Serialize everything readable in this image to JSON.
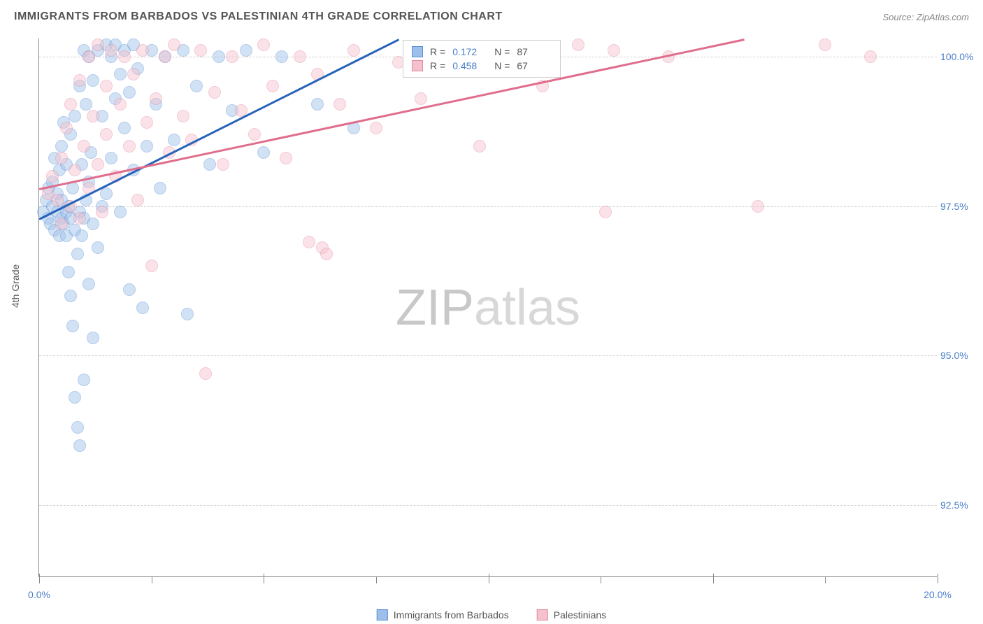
{
  "header": {
    "title": "IMMIGRANTS FROM BARBADOS VS PALESTINIAN 4TH GRADE CORRELATION CHART",
    "source_label": "Source: ",
    "source_value": "ZipAtlas.com"
  },
  "chart": {
    "type": "scatter",
    "watermark": {
      "bold": "ZIP",
      "light": "atlas"
    },
    "ylabel": "4th Grade",
    "xlim": [
      0,
      20
    ],
    "ylim": [
      91.3,
      100.3
    ],
    "yticks": [
      {
        "v": 92.5,
        "label": "92.5%"
      },
      {
        "v": 95.0,
        "label": "95.0%"
      },
      {
        "v": 97.5,
        "label": "97.5%"
      },
      {
        "v": 100.0,
        "label": "100.0%"
      }
    ],
    "xticks_major": [
      0,
      5,
      10,
      15,
      20
    ],
    "xtick_labels": [
      {
        "v": 0,
        "label": "0.0%"
      },
      {
        "v": 20,
        "label": "20.0%"
      }
    ],
    "xticks_minor_step": 2.5,
    "background_color": "#ffffff",
    "grid_color": "#d0d0d0",
    "axis_color": "#888888",
    "tick_label_color": "#4a7ec9",
    "marker_radius": 9,
    "marker_opacity": 0.45,
    "series": [
      {
        "name": "Immigrants from Barbados",
        "fill": "#9cc0eb",
        "stroke": "#5a8fd4",
        "trend_color": "#2763b8",
        "R": "0.172",
        "N": "87",
        "trend": {
          "x1": 0.0,
          "y1": 97.3,
          "x2": 8.0,
          "y2": 100.3
        },
        "points": [
          [
            0.1,
            97.4
          ],
          [
            0.15,
            97.6
          ],
          [
            0.2,
            97.3
          ],
          [
            0.2,
            97.8
          ],
          [
            0.25,
            97.2
          ],
          [
            0.3,
            97.5
          ],
          [
            0.3,
            97.9
          ],
          [
            0.35,
            97.1
          ],
          [
            0.35,
            98.3
          ],
          [
            0.4,
            97.4
          ],
          [
            0.4,
            97.7
          ],
          [
            0.45,
            97.0
          ],
          [
            0.45,
            98.1
          ],
          [
            0.5,
            97.3
          ],
          [
            0.5,
            97.6
          ],
          [
            0.5,
            98.5
          ],
          [
            0.55,
            97.2
          ],
          [
            0.55,
            98.9
          ],
          [
            0.6,
            97.0
          ],
          [
            0.6,
            97.4
          ],
          [
            0.6,
            98.2
          ],
          [
            0.65,
            96.4
          ],
          [
            0.65,
            97.5
          ],
          [
            0.7,
            96.0
          ],
          [
            0.7,
            97.3
          ],
          [
            0.7,
            98.7
          ],
          [
            0.75,
            95.5
          ],
          [
            0.75,
            97.8
          ],
          [
            0.8,
            94.3
          ],
          [
            0.8,
            97.1
          ],
          [
            0.8,
            99.0
          ],
          [
            0.85,
            93.8
          ],
          [
            0.85,
            96.7
          ],
          [
            0.9,
            93.5
          ],
          [
            0.9,
            97.4
          ],
          [
            0.9,
            99.5
          ],
          [
            0.95,
            97.0
          ],
          [
            0.95,
            98.2
          ],
          [
            1.0,
            94.6
          ],
          [
            1.0,
            97.3
          ],
          [
            1.0,
            100.1
          ],
          [
            1.05,
            97.6
          ],
          [
            1.05,
            99.2
          ],
          [
            1.1,
            96.2
          ],
          [
            1.1,
            97.9
          ],
          [
            1.1,
            100.0
          ],
          [
            1.15,
            98.4
          ],
          [
            1.2,
            95.3
          ],
          [
            1.2,
            97.2
          ],
          [
            1.2,
            99.6
          ],
          [
            1.3,
            96.8
          ],
          [
            1.3,
            100.1
          ],
          [
            1.4,
            97.5
          ],
          [
            1.4,
            99.0
          ],
          [
            1.5,
            100.2
          ],
          [
            1.5,
            97.7
          ],
          [
            1.6,
            98.3
          ],
          [
            1.6,
            100.0
          ],
          [
            1.7,
            99.3
          ],
          [
            1.7,
            100.2
          ],
          [
            1.8,
            97.4
          ],
          [
            1.8,
            99.7
          ],
          [
            1.9,
            98.8
          ],
          [
            1.9,
            100.1
          ],
          [
            2.0,
            96.1
          ],
          [
            2.0,
            99.4
          ],
          [
            2.1,
            100.2
          ],
          [
            2.1,
            98.1
          ],
          [
            2.2,
            99.8
          ],
          [
            2.3,
            95.8
          ],
          [
            2.4,
            98.5
          ],
          [
            2.5,
            100.1
          ],
          [
            2.6,
            99.2
          ],
          [
            2.7,
            97.8
          ],
          [
            2.8,
            100.0
          ],
          [
            3.0,
            98.6
          ],
          [
            3.2,
            100.1
          ],
          [
            3.3,
            95.7
          ],
          [
            3.5,
            99.5
          ],
          [
            3.8,
            98.2
          ],
          [
            4.0,
            100.0
          ],
          [
            4.3,
            99.1
          ],
          [
            4.6,
            100.1
          ],
          [
            5.0,
            98.4
          ],
          [
            5.4,
            100.0
          ],
          [
            6.2,
            99.2
          ],
          [
            7.0,
            98.8
          ]
        ]
      },
      {
        "name": "Palestinians",
        "fill": "#f4c1cd",
        "stroke": "#e58aa0",
        "trend_color": "#e06d8c",
        "R": "0.458",
        "N": "67",
        "trend": {
          "x1": 0.0,
          "y1": 97.8,
          "x2": 15.7,
          "y2": 100.3
        },
        "points": [
          [
            0.2,
            97.7
          ],
          [
            0.3,
            98.0
          ],
          [
            0.4,
            97.6
          ],
          [
            0.5,
            98.3
          ],
          [
            0.5,
            97.2
          ],
          [
            0.6,
            98.8
          ],
          [
            0.7,
            97.5
          ],
          [
            0.7,
            99.2
          ],
          [
            0.8,
            98.1
          ],
          [
            0.9,
            97.3
          ],
          [
            0.9,
            99.6
          ],
          [
            1.0,
            98.5
          ],
          [
            1.1,
            97.8
          ],
          [
            1.1,
            100.0
          ],
          [
            1.2,
            99.0
          ],
          [
            1.3,
            98.2
          ],
          [
            1.3,
            100.2
          ],
          [
            1.4,
            97.4
          ],
          [
            1.5,
            99.5
          ],
          [
            1.5,
            98.7
          ],
          [
            1.6,
            100.1
          ],
          [
            1.7,
            98.0
          ],
          [
            1.8,
            99.2
          ],
          [
            1.9,
            100.0
          ],
          [
            2.0,
            98.5
          ],
          [
            2.1,
            99.7
          ],
          [
            2.2,
            97.6
          ],
          [
            2.3,
            100.1
          ],
          [
            2.4,
            98.9
          ],
          [
            2.5,
            96.5
          ],
          [
            2.6,
            99.3
          ],
          [
            2.8,
            100.0
          ],
          [
            2.9,
            98.4
          ],
          [
            3.0,
            100.2
          ],
          [
            3.2,
            99.0
          ],
          [
            3.4,
            98.6
          ],
          [
            3.6,
            100.1
          ],
          [
            3.7,
            94.7
          ],
          [
            3.9,
            99.4
          ],
          [
            4.1,
            98.2
          ],
          [
            4.3,
            100.0
          ],
          [
            4.5,
            99.1
          ],
          [
            4.8,
            98.7
          ],
          [
            5.0,
            100.2
          ],
          [
            5.2,
            99.5
          ],
          [
            5.5,
            98.3
          ],
          [
            5.8,
            100.0
          ],
          [
            6.0,
            96.9
          ],
          [
            6.2,
            99.7
          ],
          [
            6.3,
            96.8
          ],
          [
            6.4,
            96.7
          ],
          [
            6.7,
            99.2
          ],
          [
            7.0,
            100.1
          ],
          [
            7.5,
            98.8
          ],
          [
            8.0,
            99.9
          ],
          [
            8.5,
            99.3
          ],
          [
            9.2,
            100.1
          ],
          [
            9.8,
            98.5
          ],
          [
            10.5,
            100.0
          ],
          [
            11.2,
            99.5
          ],
          [
            12.0,
            100.2
          ],
          [
            12.6,
            97.4
          ],
          [
            12.8,
            100.1
          ],
          [
            14.0,
            100.0
          ],
          [
            16.0,
            97.5
          ],
          [
            17.5,
            100.2
          ],
          [
            18.5,
            100.0
          ]
        ]
      }
    ],
    "legend_box": {
      "rows": [
        {
          "series_idx": 0,
          "r_prefix": "R =",
          "n_prefix": "N ="
        },
        {
          "series_idx": 1,
          "r_prefix": "R =",
          "n_prefix": "N ="
        }
      ]
    }
  }
}
